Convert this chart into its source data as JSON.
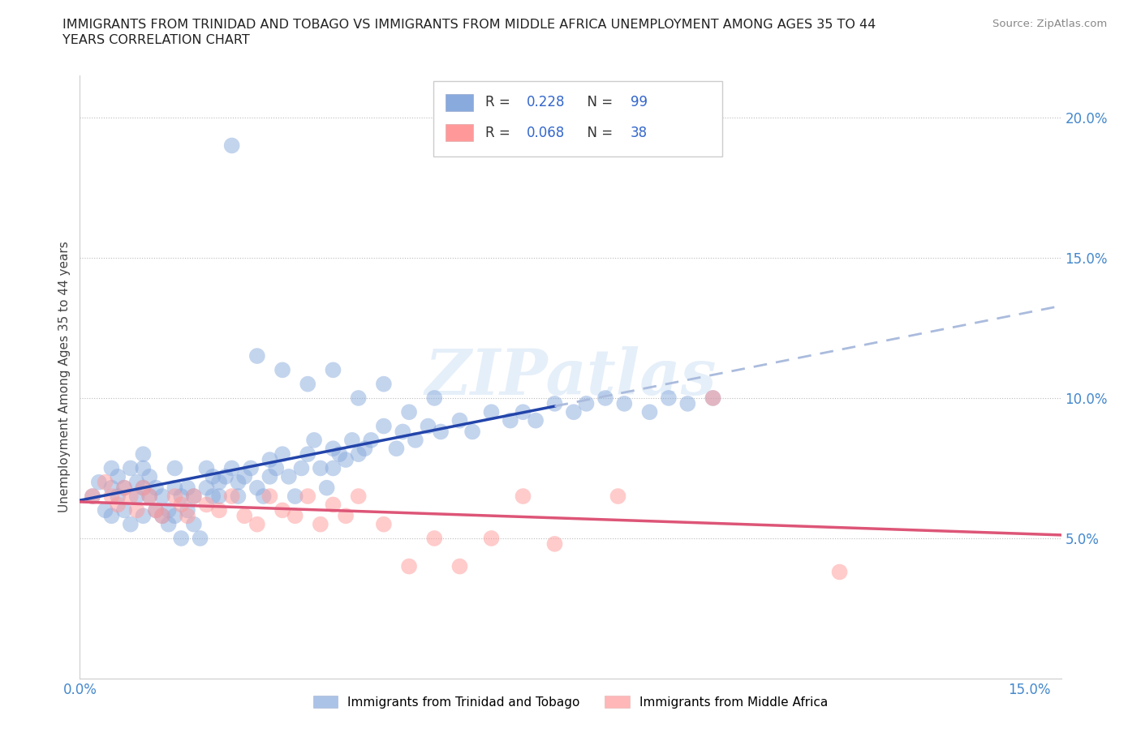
{
  "title_line1": "IMMIGRANTS FROM TRINIDAD AND TOBAGO VS IMMIGRANTS FROM MIDDLE AFRICA UNEMPLOYMENT AMONG AGES 35 TO 44",
  "title_line2": "YEARS CORRELATION CHART",
  "source_text": "Source: ZipAtlas.com",
  "ylabel": "Unemployment Among Ages 35 to 44 years",
  "xlim": [
    0.0,
    0.155
  ],
  "ylim": [
    0.0,
    0.215
  ],
  "color_blue": "#88AADD",
  "color_pink": "#FF9999",
  "trend_blue_solid": "#2244AA",
  "trend_pink_solid": "#DD5577",
  "trend_blue_dash": "#AABBDD",
  "R_blue": 0.228,
  "N_blue": 99,
  "R_pink": 0.068,
  "N_pink": 38,
  "legend_blue_label": "Immigrants from Trinidad and Tobago",
  "legend_pink_label": "Immigrants from Middle Africa",
  "watermark": "ZIPatlas",
  "blue_x": [
    0.002,
    0.003,
    0.004,
    0.005,
    0.005,
    0.005,
    0.006,
    0.006,
    0.007,
    0.007,
    0.008,
    0.008,
    0.009,
    0.009,
    0.01,
    0.01,
    0.01,
    0.01,
    0.011,
    0.011,
    0.012,
    0.012,
    0.013,
    0.013,
    0.014,
    0.014,
    0.015,
    0.015,
    0.015,
    0.016,
    0.016,
    0.017,
    0.017,
    0.018,
    0.018,
    0.019,
    0.02,
    0.02,
    0.021,
    0.021,
    0.022,
    0.022,
    0.023,
    0.024,
    0.025,
    0.025,
    0.026,
    0.027,
    0.028,
    0.029,
    0.03,
    0.03,
    0.031,
    0.032,
    0.033,
    0.034,
    0.035,
    0.036,
    0.037,
    0.038,
    0.039,
    0.04,
    0.04,
    0.041,
    0.042,
    0.043,
    0.044,
    0.045,
    0.046,
    0.048,
    0.05,
    0.051,
    0.053,
    0.055,
    0.057,
    0.06,
    0.062,
    0.065,
    0.068,
    0.07,
    0.072,
    0.075,
    0.078,
    0.08,
    0.083,
    0.086,
    0.09,
    0.093,
    0.096,
    0.1,
    0.024,
    0.028,
    0.032,
    0.036,
    0.04,
    0.044,
    0.048,
    0.052,
    0.056
  ],
  "blue_y": [
    0.065,
    0.07,
    0.06,
    0.068,
    0.075,
    0.058,
    0.065,
    0.072,
    0.06,
    0.068,
    0.075,
    0.055,
    0.065,
    0.07,
    0.068,
    0.075,
    0.08,
    0.058,
    0.065,
    0.072,
    0.06,
    0.068,
    0.058,
    0.065,
    0.06,
    0.055,
    0.068,
    0.075,
    0.058,
    0.065,
    0.05,
    0.06,
    0.068,
    0.055,
    0.065,
    0.05,
    0.068,
    0.075,
    0.065,
    0.072,
    0.07,
    0.065,
    0.072,
    0.075,
    0.07,
    0.065,
    0.072,
    0.075,
    0.068,
    0.065,
    0.072,
    0.078,
    0.075,
    0.08,
    0.072,
    0.065,
    0.075,
    0.08,
    0.085,
    0.075,
    0.068,
    0.082,
    0.075,
    0.08,
    0.078,
    0.085,
    0.08,
    0.082,
    0.085,
    0.09,
    0.082,
    0.088,
    0.085,
    0.09,
    0.088,
    0.092,
    0.088,
    0.095,
    0.092,
    0.095,
    0.092,
    0.098,
    0.095,
    0.098,
    0.1,
    0.098,
    0.095,
    0.1,
    0.098,
    0.1,
    0.19,
    0.115,
    0.11,
    0.105,
    0.11,
    0.1,
    0.105,
    0.095,
    0.1
  ],
  "pink_x": [
    0.002,
    0.004,
    0.005,
    0.006,
    0.007,
    0.008,
    0.009,
    0.01,
    0.011,
    0.012,
    0.013,
    0.015,
    0.016,
    0.017,
    0.018,
    0.02,
    0.022,
    0.024,
    0.026,
    0.028,
    0.03,
    0.032,
    0.034,
    0.036,
    0.038,
    0.04,
    0.042,
    0.044,
    0.048,
    0.052,
    0.056,
    0.06,
    0.065,
    0.07,
    0.075,
    0.085,
    0.1,
    0.12
  ],
  "pink_y": [
    0.065,
    0.07,
    0.065,
    0.062,
    0.068,
    0.065,
    0.06,
    0.068,
    0.065,
    0.06,
    0.058,
    0.065,
    0.062,
    0.058,
    0.065,
    0.062,
    0.06,
    0.065,
    0.058,
    0.055,
    0.065,
    0.06,
    0.058,
    0.065,
    0.055,
    0.062,
    0.058,
    0.065,
    0.055,
    0.04,
    0.05,
    0.04,
    0.05,
    0.065,
    0.048,
    0.065,
    0.1,
    0.038
  ]
}
